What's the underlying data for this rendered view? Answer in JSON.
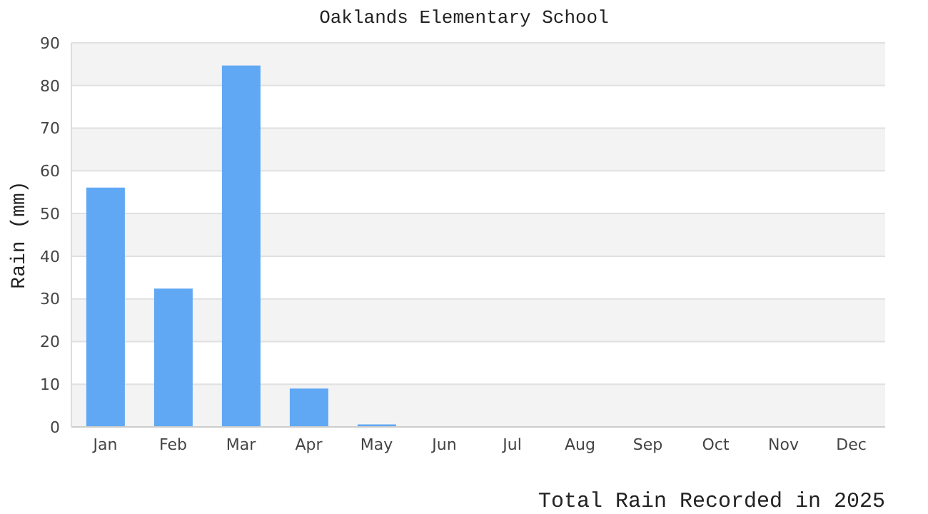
{
  "chart_data": {
    "type": "bar",
    "title": "Oaklands Elementary School",
    "xlabel": "Total Rain Recorded in 2025",
    "ylabel": "Rain (mm)",
    "categories": [
      "Jan",
      "Feb",
      "Mar",
      "Apr",
      "May",
      "Jun",
      "Jul",
      "Aug",
      "Sep",
      "Oct",
      "Nov",
      "Dec"
    ],
    "values": [
      56.1,
      32.4,
      84.7,
      9.0,
      0.6,
      0,
      0,
      0,
      0,
      0,
      0,
      0
    ],
    "color": "#60a8f4",
    "ylim": [
      0,
      90
    ],
    "yticks": [
      0,
      10,
      20,
      30,
      40,
      50,
      60,
      70,
      80,
      90
    ],
    "grid": "y"
  }
}
